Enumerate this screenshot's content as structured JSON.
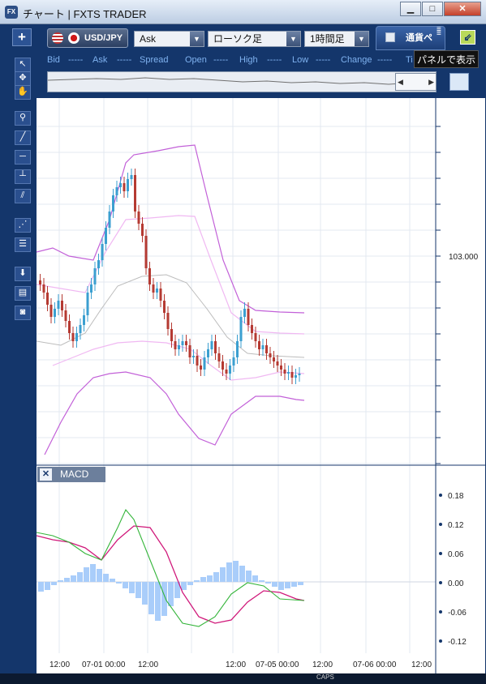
{
  "window": {
    "title": "チャート | FXTS TRADER",
    "icon_label": "FX",
    "min_label": "▁",
    "max_label": "□",
    "close_label": "✕"
  },
  "toolbar": {
    "add_label": "+",
    "symbol": "USD/JPY",
    "price_side": "Ask",
    "chart_type": "ローソク足",
    "timeframe": "1時間足",
    "currency_tab": "通貨ペ",
    "tooltip": "パネルで表示"
  },
  "quote": {
    "bid_label": "Bid",
    "bid": "-----",
    "ask_label": "Ask",
    "ask": "-----",
    "spread_label": "Spread",
    "open_label": "Open",
    "open": "-----",
    "high_label": "High",
    "high": "-----",
    "low_label": "Low",
    "low": "-----",
    "change_label": "Change",
    "change": "-----",
    "ti_label": "Ti"
  },
  "main_chart": {
    "price_label": "103.000"
  },
  "macd": {
    "label": "MACD",
    "close_label": "✕",
    "ticks": [
      "0.18",
      "0.12",
      "0.06",
      "0.00",
      "-0.06",
      "-0.12"
    ]
  },
  "x_axis": {
    "labels": [
      "12:00",
      "07-01 00:00",
      "12:00",
      "12:00",
      "07-05 00:00",
      "12:00",
      "07-06 00:00",
      "12:00"
    ]
  },
  "taskbar": {
    "caps": "CAPS"
  },
  "colors": {
    "candle_up": "#3b9fd0",
    "candle_down": "#b53a32",
    "band_outer": "#c260d8",
    "band_inner": "#f0b8f2",
    "ma": "#bcbcbc",
    "macd_line": "#d0187a",
    "signal_line": "#34b53a",
    "histogram": "#a9cdfa"
  }
}
